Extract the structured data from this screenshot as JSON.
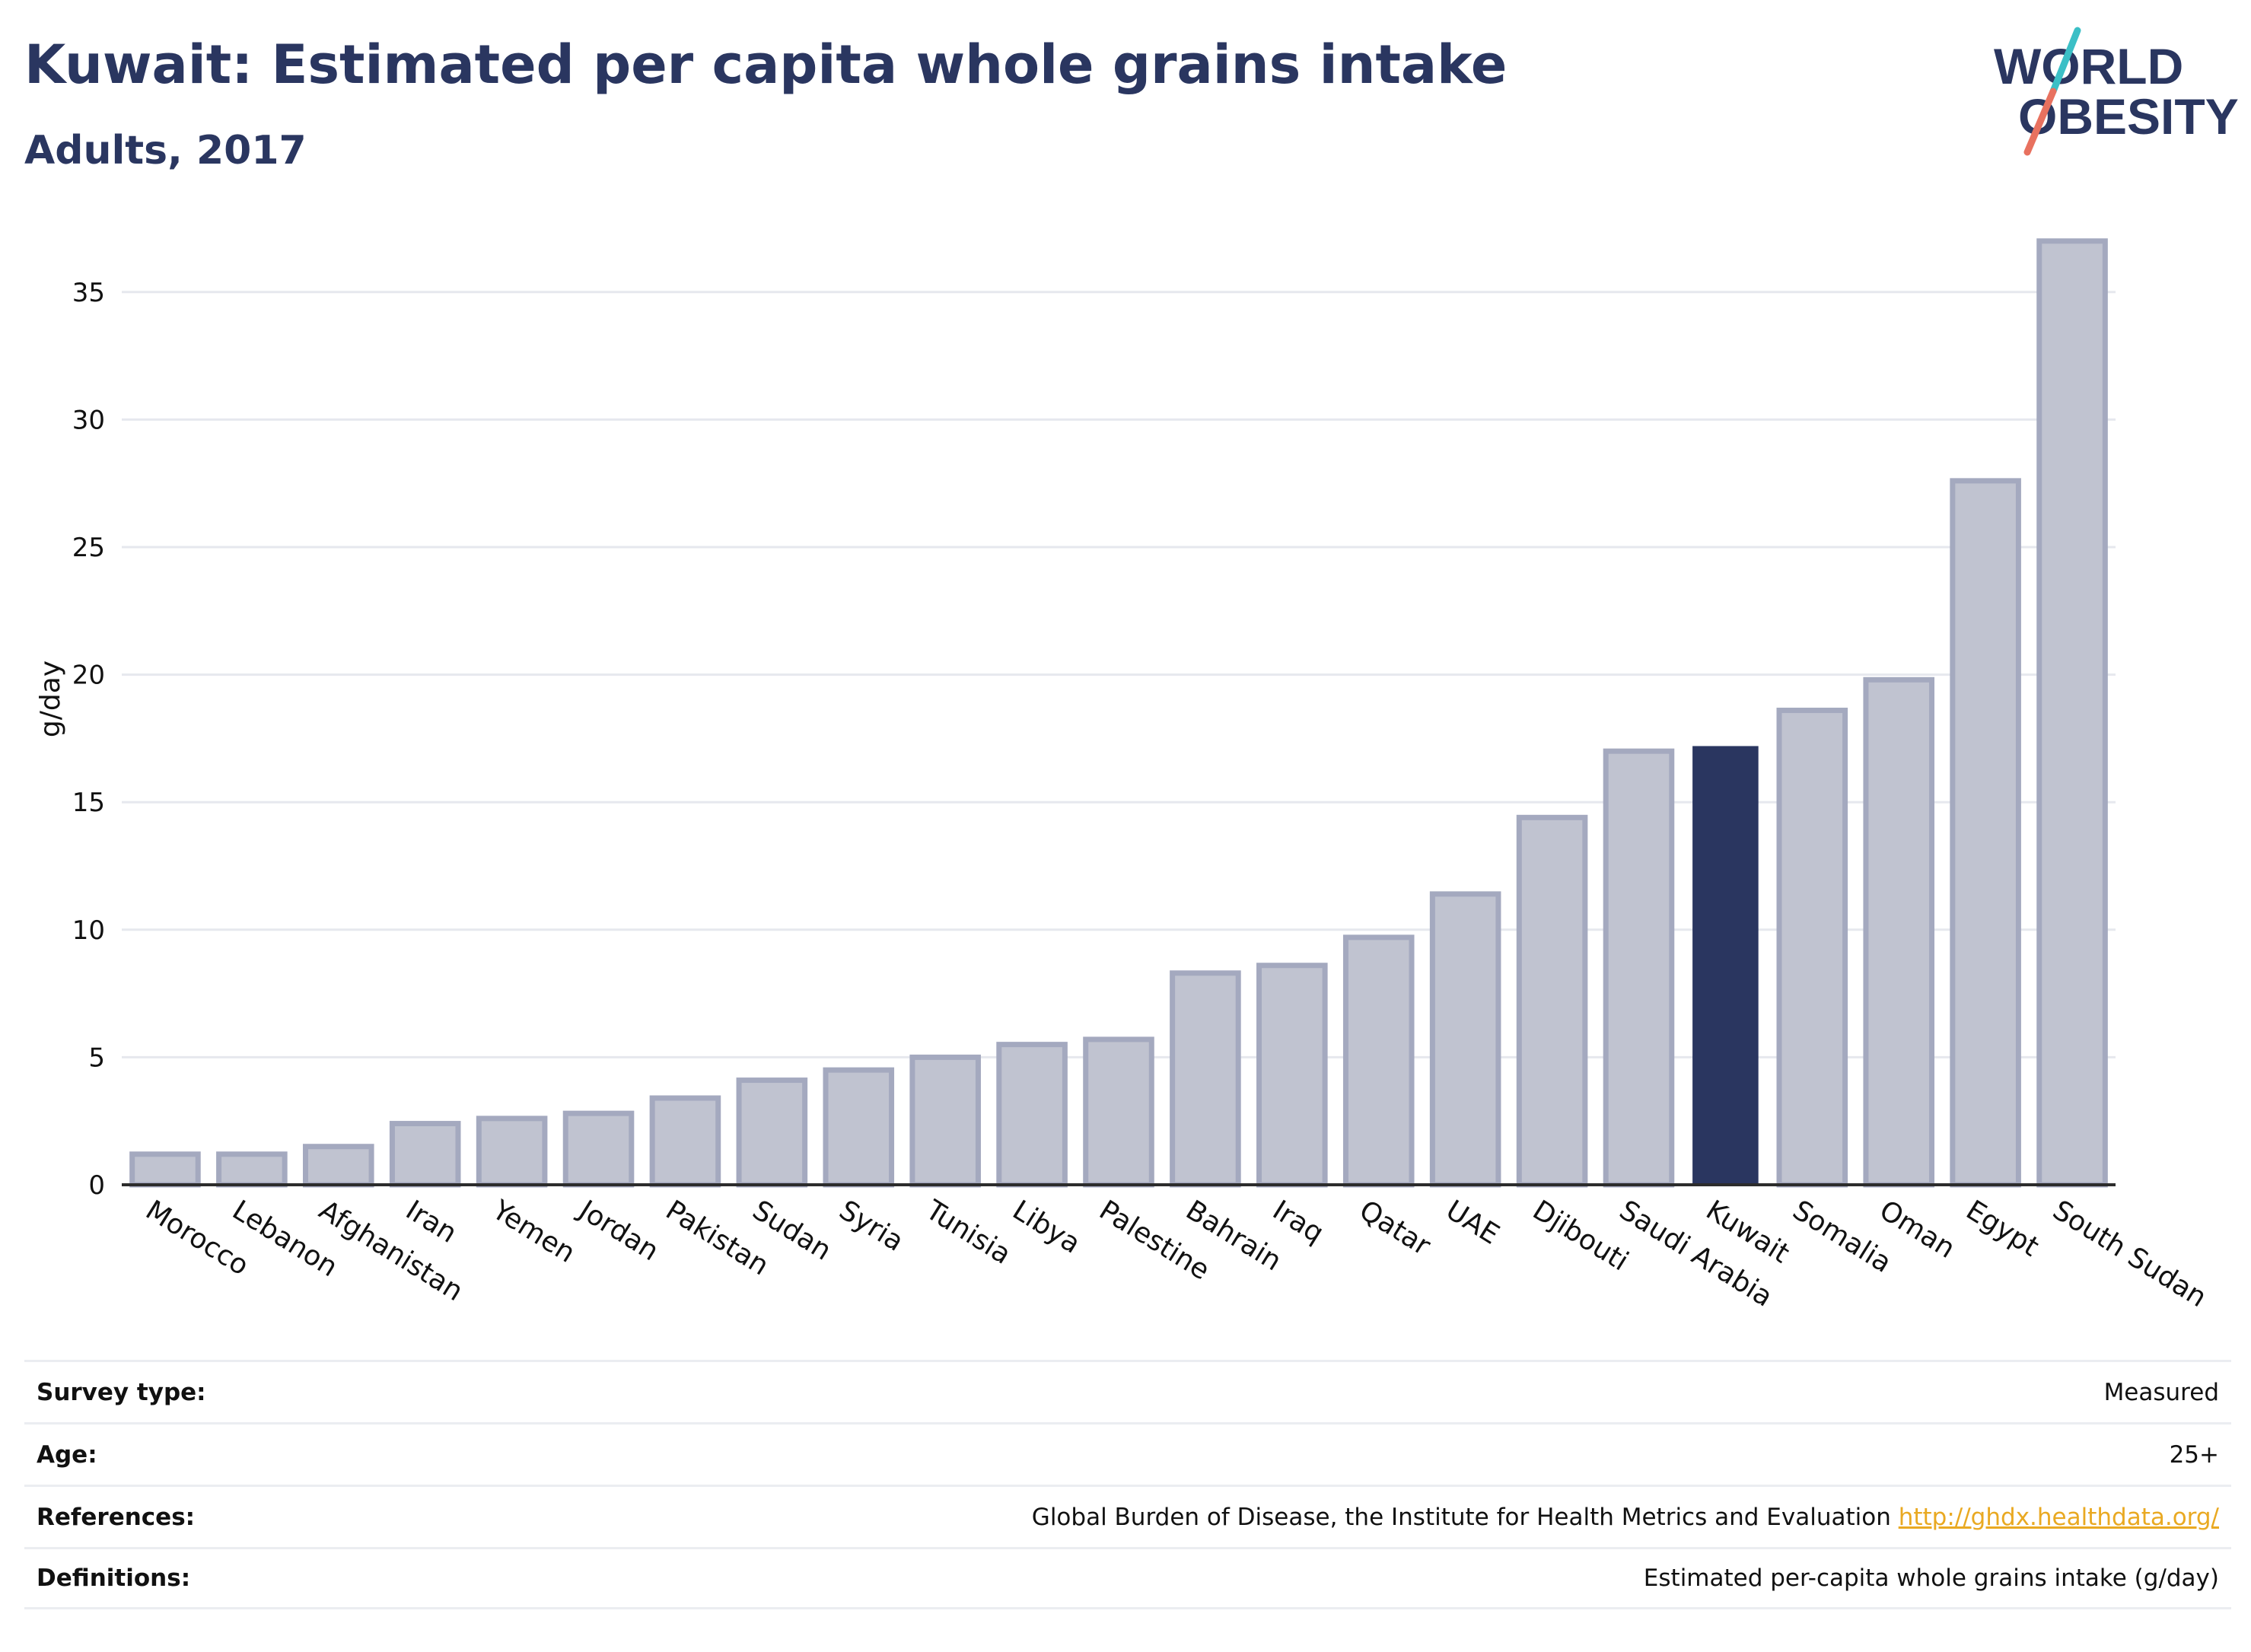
{
  "header": {
    "title": "Kuwait: Estimated per capita whole grains intake",
    "subtitle": "Adults, 2017"
  },
  "logo": {
    "line1": "WORLD",
    "line2": "OBESITY",
    "colors": {
      "text": "#2a3660",
      "slash_top": "#3bbfc6",
      "slash_bottom": "#e8715f"
    }
  },
  "colors": {
    "bar": "#c0c3d0",
    "bar_stroke": "#a4a9bf",
    "highlight": "#2a3660",
    "grid": "#e6e8ee",
    "axis": "#2c2c2c",
    "link": "#e9a922"
  },
  "chart_data": {
    "type": "bar",
    "ylabel": "g/day",
    "xlabel": "",
    "ylim": [
      0,
      37.5
    ],
    "yticks": [
      0,
      5,
      10,
      15,
      20,
      25,
      30,
      35
    ],
    "grid": true,
    "highlight": "Kuwait",
    "categories": [
      "Morocco",
      "Lebanon",
      "Afghanistan",
      "Iran",
      "Yemen",
      "Jordan",
      "Pakistan",
      "Sudan",
      "Syria",
      "Tunisia",
      "Libya",
      "Palestine",
      "Bahrain",
      "Iraq",
      "Qatar",
      "UAE",
      "Djibouti",
      "Saudi Arabia",
      "Kuwait",
      "Somalia",
      "Oman",
      "Egypt",
      "South Sudan"
    ],
    "values": [
      1.2,
      1.2,
      1.5,
      2.4,
      2.6,
      2.8,
      3.4,
      4.1,
      4.5,
      5.0,
      5.5,
      5.7,
      8.3,
      8.6,
      9.7,
      11.4,
      14.4,
      17.0,
      17.2,
      18.6,
      19.8,
      27.6,
      37.0
    ]
  },
  "info": {
    "survey_type": {
      "label": "Survey type:",
      "value": "Measured"
    },
    "age": {
      "label": "Age:",
      "value": "25+"
    },
    "references": {
      "label": "References:",
      "value": "Global Burden of Disease, the Institute for Health Metrics and Evaluation",
      "link": "http://ghdx.healthdata.org/"
    },
    "definitions": {
      "label": "Definitions:",
      "value": "Estimated per-capita whole grains intake (g/day)"
    }
  }
}
